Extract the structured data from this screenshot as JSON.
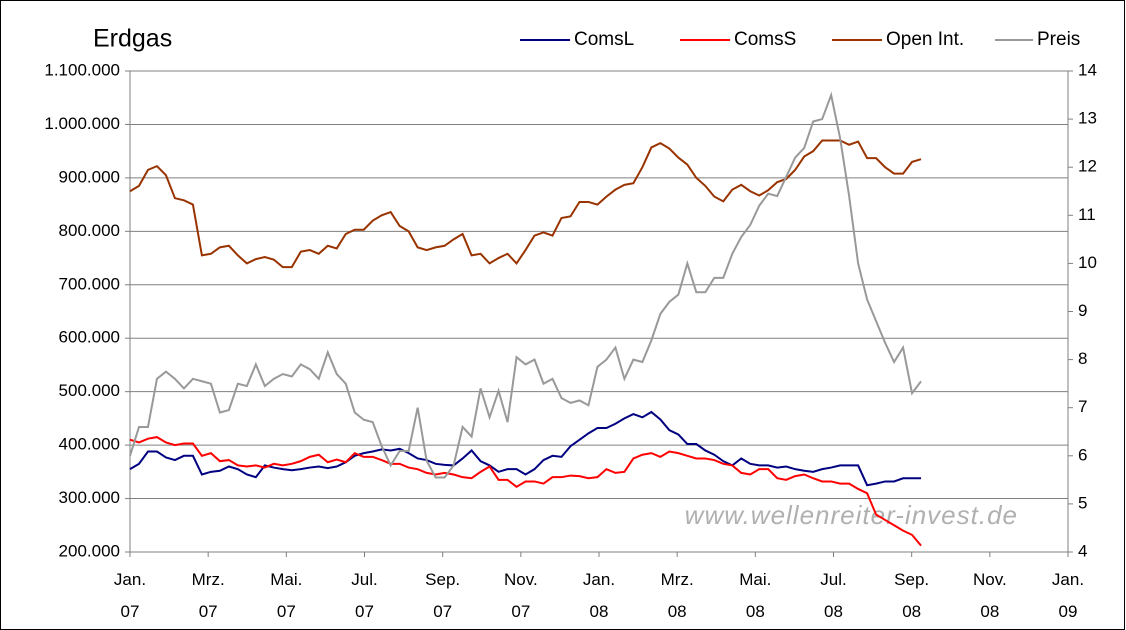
{
  "chart_data": {
    "type": "line",
    "title": "Erdgas",
    "watermark": "www.wellenreiter-invest.de",
    "xlim": [
      0,
      24
    ],
    "xticks": [
      {
        "value": 0,
        "label": "Jan.\n07"
      },
      {
        "value": 2,
        "label": "Mrz.\n07"
      },
      {
        "value": 4,
        "label": "Mai.\n07"
      },
      {
        "value": 6,
        "label": "Jul.\n07"
      },
      {
        "value": 8,
        "label": "Sep.\n07"
      },
      {
        "value": 10,
        "label": "Nov.\n07"
      },
      {
        "value": 12,
        "label": "Jan.\n08"
      },
      {
        "value": 14,
        "label": "Mrz.\n08"
      },
      {
        "value": 16,
        "label": "Mai.\n08"
      },
      {
        "value": 18,
        "label": "Jul.\n08"
      },
      {
        "value": 20,
        "label": "Sep.\n08"
      },
      {
        "value": 22,
        "label": "Nov.\n08"
      },
      {
        "value": 24,
        "label": "Jan.\n09"
      }
    ],
    "ylim": [
      200000,
      1100000
    ],
    "yticks": [
      {
        "value": 200000,
        "label": "200.000"
      },
      {
        "value": 300000,
        "label": "300.000"
      },
      {
        "value": 400000,
        "label": "400.000"
      },
      {
        "value": 500000,
        "label": "500.000"
      },
      {
        "value": 600000,
        "label": "600.000"
      },
      {
        "value": 700000,
        "label": "700.000"
      },
      {
        "value": 800000,
        "label": "800.000"
      },
      {
        "value": 900000,
        "label": "900.000"
      },
      {
        "value": 1000000,
        "label": "1.000.000"
      },
      {
        "value": 1100000,
        "label": "1.100.000"
      }
    ],
    "y2lim": [
      4,
      14
    ],
    "y2ticks": [
      4,
      5,
      6,
      7,
      8,
      9,
      10,
      11,
      12,
      13,
      14
    ],
    "grid": true,
    "legend": "top",
    "x": [
      0,
      0.23,
      0.46,
      0.69,
      0.92,
      1.15,
      1.38,
      1.61,
      1.84,
      2.07,
      2.3,
      2.53,
      2.76,
      2.99,
      3.22,
      3.45,
      3.68,
      3.91,
      4.14,
      4.37,
      4.6,
      4.83,
      5.06,
      5.29,
      5.52,
      5.75,
      5.98,
      6.21,
      6.44,
      6.67,
      6.9,
      7.13,
      7.36,
      7.59,
      7.82,
      8.05,
      8.28,
      8.51,
      8.74,
      8.97,
      9.2,
      9.43,
      9.66,
      9.89,
      10.12,
      10.35,
      10.58,
      10.81,
      11.04,
      11.27,
      11.5,
      11.73,
      11.96,
      12.19,
      12.42,
      12.65,
      12.88,
      13.11,
      13.34,
      13.57,
      13.8,
      14.03,
      14.26,
      14.49,
      14.72,
      14.95,
      15.18,
      15.41,
      15.64,
      15.87,
      16.1,
      16.33,
      16.56,
      16.79,
      17.02,
      17.25,
      17.48,
      17.71,
      17.94,
      18.17,
      18.4,
      18.63,
      18.86,
      19.09,
      19.32,
      19.55,
      19.78,
      20.01,
      20.24
    ],
    "series": [
      {
        "name": "ComsL",
        "color": "#000080",
        "values": [
          355000,
          365000,
          388000,
          388000,
          377000,
          372000,
          380000,
          380000,
          345000,
          350000,
          352000,
          360000,
          355000,
          345000,
          340000,
          362000,
          358000,
          355000,
          353000,
          355000,
          358000,
          360000,
          357000,
          360000,
          368000,
          380000,
          385000,
          388000,
          392000,
          390000,
          393000,
          385000,
          375000,
          372000,
          365000,
          363000,
          362000,
          375000,
          390000,
          370000,
          362000,
          350000,
          355000,
          355000,
          345000,
          355000,
          372000,
          380000,
          378000,
          398000,
          410000,
          422000,
          432000,
          432000,
          440000,
          450000,
          458000,
          452000,
          462000,
          448000,
          428000,
          420000,
          402000,
          402000,
          390000,
          382000,
          370000,
          362000,
          375000,
          365000,
          362000,
          362000,
          358000,
          360000,
          355000,
          352000,
          350000,
          355000,
          358000,
          362000,
          362000,
          362000,
          325000,
          328000,
          332000,
          332000,
          338000,
          338000,
          338000
        ]
      },
      {
        "name": "ComsS",
        "color": "#ff0000",
        "values": [
          410000,
          405000,
          412000,
          415000,
          405000,
          400000,
          403000,
          403000,
          380000,
          385000,
          370000,
          372000,
          362000,
          360000,
          362000,
          358000,
          365000,
          362000,
          365000,
          370000,
          378000,
          382000,
          368000,
          373000,
          368000,
          385000,
          378000,
          378000,
          372000,
          365000,
          365000,
          358000,
          355000,
          348000,
          345000,
          348000,
          345000,
          340000,
          338000,
          350000,
          360000,
          335000,
          335000,
          322000,
          332000,
          332000,
          328000,
          340000,
          340000,
          343000,
          342000,
          338000,
          340000,
          355000,
          348000,
          350000,
          375000,
          382000,
          385000,
          378000,
          388000,
          385000,
          380000,
          375000,
          375000,
          372000,
          365000,
          362000,
          348000,
          345000,
          355000,
          355000,
          338000,
          335000,
          342000,
          345000,
          338000,
          332000,
          332000,
          328000,
          328000,
          318000,
          310000,
          270000,
          260000,
          250000,
          240000,
          232000,
          212000
        ]
      },
      {
        "name": "Open Int.",
        "color": "#993300",
        "values": [
          875000,
          885000,
          915000,
          922000,
          905000,
          862000,
          858000,
          850000,
          755000,
          758000,
          770000,
          773000,
          755000,
          740000,
          748000,
          752000,
          747000,
          733000,
          733000,
          762000,
          765000,
          758000,
          773000,
          768000,
          795000,
          803000,
          803000,
          820000,
          830000,
          836000,
          810000,
          800000,
          770000,
          765000,
          770000,
          773000,
          785000,
          795000,
          755000,
          758000,
          740000,
          750000,
          758000,
          740000,
          765000,
          792000,
          798000,
          792000,
          825000,
          828000,
          855000,
          855000,
          850000,
          865000,
          878000,
          887000,
          890000,
          920000,
          957000,
          965000,
          955000,
          938000,
          925000,
          900000,
          885000,
          865000,
          856000,
          878000,
          887000,
          875000,
          867000,
          877000,
          892000,
          898000,
          915000,
          940000,
          950000,
          970000,
          970000,
          970000,
          962000,
          968000,
          937000,
          937000,
          920000,
          908000,
          908000,
          930000,
          935000
        ]
      },
      {
        "name": "Preis",
        "color": "#999999",
        "axis": "y2",
        "values": [
          6.0,
          6.6,
          6.6,
          7.6,
          7.75,
          7.6,
          7.4,
          7.6,
          7.55,
          7.5,
          6.9,
          6.95,
          7.5,
          7.45,
          7.9,
          7.45,
          7.6,
          7.7,
          7.65,
          7.9,
          7.8,
          7.6,
          8.15,
          7.7,
          7.5,
          6.9,
          6.75,
          6.7,
          6.2,
          5.8,
          6.1,
          6.1,
          7.0,
          5.9,
          5.55,
          5.55,
          5.8,
          6.6,
          6.4,
          7.4,
          6.8,
          7.35,
          6.7,
          8.05,
          7.9,
          8.0,
          7.5,
          7.6,
          7.2,
          7.1,
          7.15,
          7.05,
          7.85,
          8.0,
          8.25,
          7.6,
          8.0,
          7.95,
          8.4,
          8.95,
          9.2,
          9.35,
          10.0,
          9.4,
          9.4,
          9.7,
          9.7,
          10.2,
          10.55,
          10.8,
          11.2,
          11.45,
          11.4,
          11.8,
          12.2,
          12.4,
          12.95,
          13.0,
          13.5,
          12.6,
          11.4,
          10.0,
          9.25,
          8.8,
          8.35,
          7.95,
          8.25,
          7.3,
          7.55
        ]
      }
    ]
  }
}
